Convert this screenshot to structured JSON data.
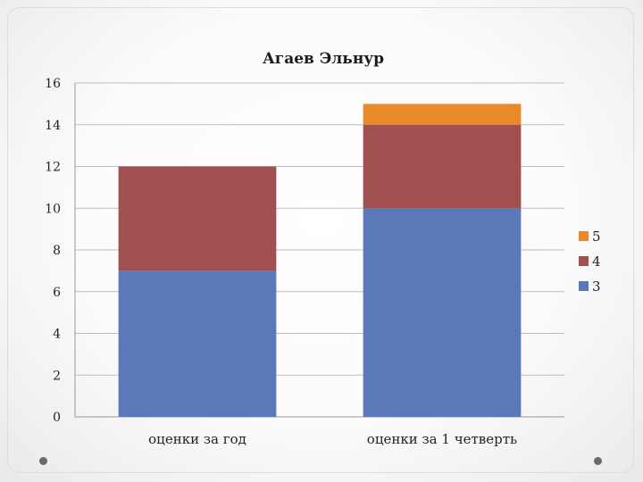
{
  "chart_data": {
    "type": "bar",
    "stacked": true,
    "title": "Агаев Эльнур",
    "xlabel": "",
    "ylabel": "",
    "categories": [
      "оценки за год",
      "оценки за 1 четверть"
    ],
    "series": [
      {
        "name": "3",
        "color": "#5b78b8",
        "values": [
          7,
          10
        ]
      },
      {
        "name": "4",
        "color": "#a0504e",
        "values": [
          5,
          4
        ]
      },
      {
        "name": "5",
        "color": "#e88a2a",
        "values": [
          0,
          1
        ]
      }
    ],
    "ylim": [
      0,
      16
    ],
    "yticks": [
      "0",
      "2",
      "4",
      "6",
      "8",
      "10",
      "12",
      "14",
      "16"
    ],
    "grid": true,
    "legend_position": "right",
    "legend_order": [
      "5",
      "4",
      "3"
    ]
  }
}
